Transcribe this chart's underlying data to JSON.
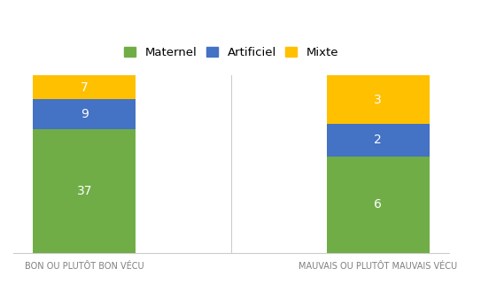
{
  "categories": [
    "BON OU PLUTÔT BON VÉCU",
    "MAUVAIS OU PLUTÔT MAUVAIS VÉCU"
  ],
  "series": {
    "Maternel": [
      37,
      6
    ],
    "Artificiel": [
      9,
      2
    ],
    "Mixte": [
      7,
      3
    ]
  },
  "colors": {
    "Maternel": "#70AD47",
    "Artificiel": "#4472C4",
    "Mixte": "#FFC000"
  },
  "bar_width": 0.35,
  "label_fontsize": 10,
  "tick_fontsize": 7.0,
  "legend_fontsize": 9.5,
  "label_color": "white",
  "background_color": "#FFFFFF",
  "ylim": [
    0,
    100
  ],
  "separator_color": "#CCCCCC",
  "spine_color": "#CCCCCC"
}
